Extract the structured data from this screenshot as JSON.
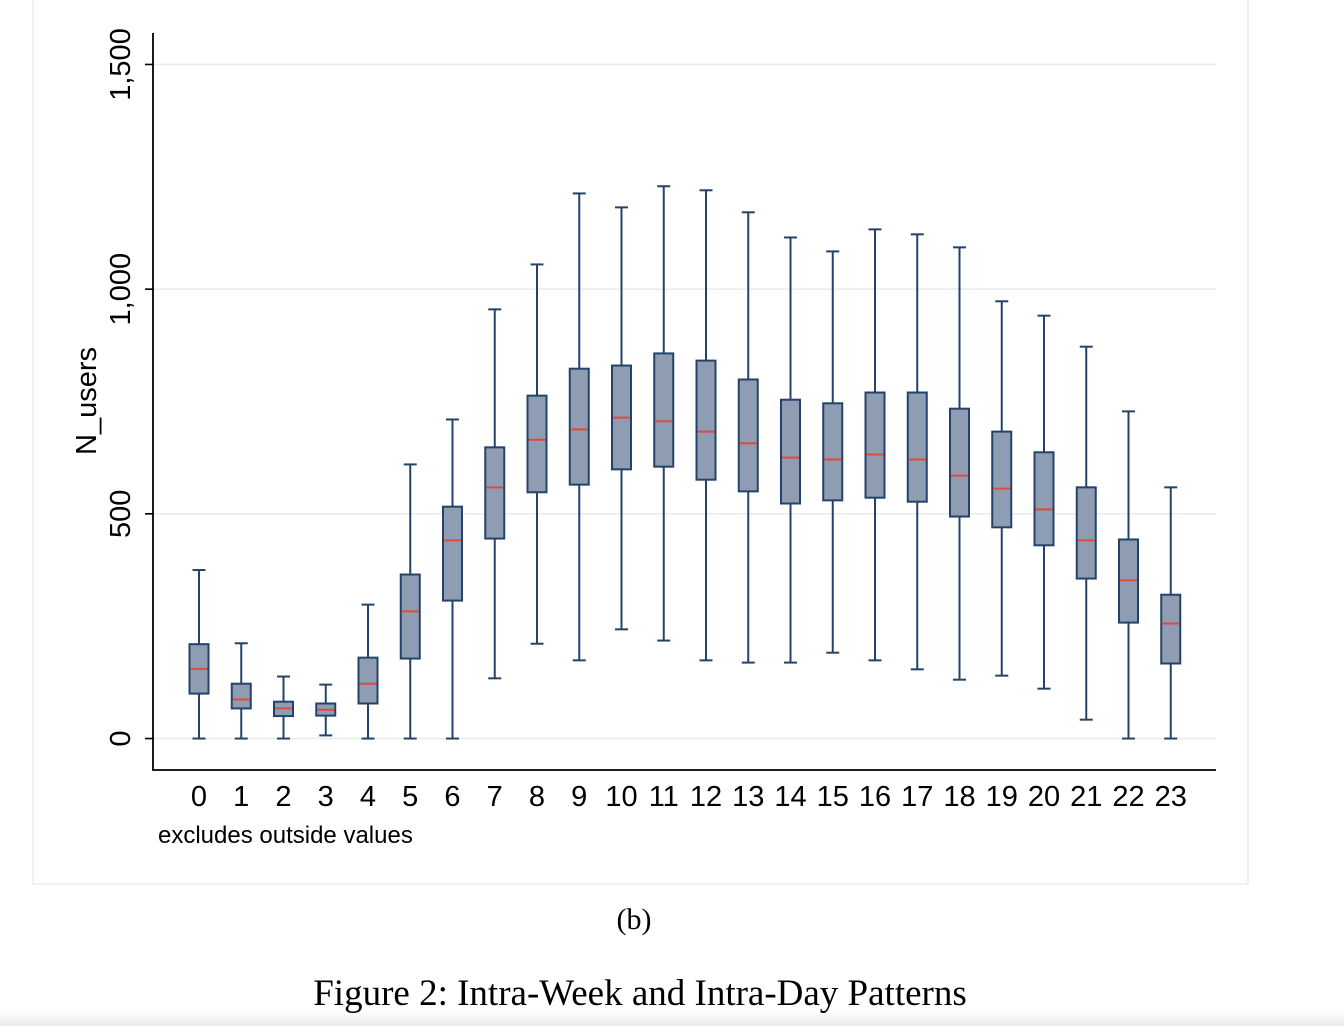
{
  "chart_data": {
    "type": "box",
    "categories": [
      "0",
      "1",
      "2",
      "3",
      "4",
      "5",
      "6",
      "7",
      "8",
      "9",
      "10",
      "11",
      "12",
      "13",
      "14",
      "15",
      "16",
      "17",
      "18",
      "19",
      "20",
      "21",
      "22",
      "23"
    ],
    "boxes": [
      {
        "min": 0,
        "q1": 100,
        "median": 155,
        "q3": 210,
        "max": 375
      },
      {
        "min": 0,
        "q1": 67,
        "median": 87,
        "q3": 122,
        "max": 212
      },
      {
        "min": 0,
        "q1": 50,
        "median": 67,
        "q3": 82,
        "max": 138
      },
      {
        "min": 7,
        "q1": 51,
        "median": 64,
        "q3": 78,
        "max": 120
      },
      {
        "min": 0,
        "q1": 78,
        "median": 122,
        "q3": 180,
        "max": 298
      },
      {
        "min": 0,
        "q1": 178,
        "median": 283,
        "q3": 365,
        "max": 610
      },
      {
        "min": 0,
        "q1": 307,
        "median": 441,
        "q3": 516,
        "max": 710
      },
      {
        "min": 134,
        "q1": 445,
        "median": 559,
        "q3": 648,
        "max": 955
      },
      {
        "min": 211,
        "q1": 548,
        "median": 665,
        "q3": 763,
        "max": 1055
      },
      {
        "min": 174,
        "q1": 565,
        "median": 688,
        "q3": 823,
        "max": 1213
      },
      {
        "min": 243,
        "q1": 599,
        "median": 714,
        "q3": 830,
        "max": 1182
      },
      {
        "min": 218,
        "q1": 605,
        "median": 706,
        "q3": 857,
        "max": 1229
      },
      {
        "min": 174,
        "q1": 576,
        "median": 683,
        "q3": 841,
        "max": 1220
      },
      {
        "min": 169,
        "q1": 550,
        "median": 657,
        "q3": 799,
        "max": 1171
      },
      {
        "min": 169,
        "q1": 523,
        "median": 625,
        "q3": 754,
        "max": 1115
      },
      {
        "min": 191,
        "q1": 530,
        "median": 621,
        "q3": 746,
        "max": 1084
      },
      {
        "min": 174,
        "q1": 536,
        "median": 632,
        "q3": 770,
        "max": 1133
      },
      {
        "min": 154,
        "q1": 527,
        "median": 621,
        "q3": 770,
        "max": 1122
      },
      {
        "min": 131,
        "q1": 494,
        "median": 585,
        "q3": 734,
        "max": 1093
      },
      {
        "min": 140,
        "q1": 470,
        "median": 556,
        "q3": 683,
        "max": 973
      },
      {
        "min": 111,
        "q1": 430,
        "median": 510,
        "q3": 637,
        "max": 941
      },
      {
        "min": 42,
        "q1": 356,
        "median": 441,
        "q3": 559,
        "max": 872
      },
      {
        "min": 0,
        "q1": 258,
        "median": 352,
        "q3": 443,
        "max": 728
      },
      {
        "min": 0,
        "q1": 167,
        "median": 256,
        "q3": 320,
        "max": 559
      }
    ],
    "ylabel": "N_users",
    "yticks": [
      0,
      500,
      1000,
      1500
    ],
    "ytick_labels": [
      "0",
      "500",
      "1,000",
      "1,500"
    ],
    "ylim": [
      -70,
      1570
    ],
    "grid": true,
    "note": "excludes outside values"
  },
  "colors": {
    "box_fill": "#8e9db2",
    "box_stroke": "#24436a",
    "median": "#e4473b",
    "grid": "#e6edf1",
    "axis": "#000000",
    "panel_border": "#ececec"
  },
  "subcaption": "(b)",
  "caption": "Figure 2: Intra-Week and Intra-Day Patterns"
}
